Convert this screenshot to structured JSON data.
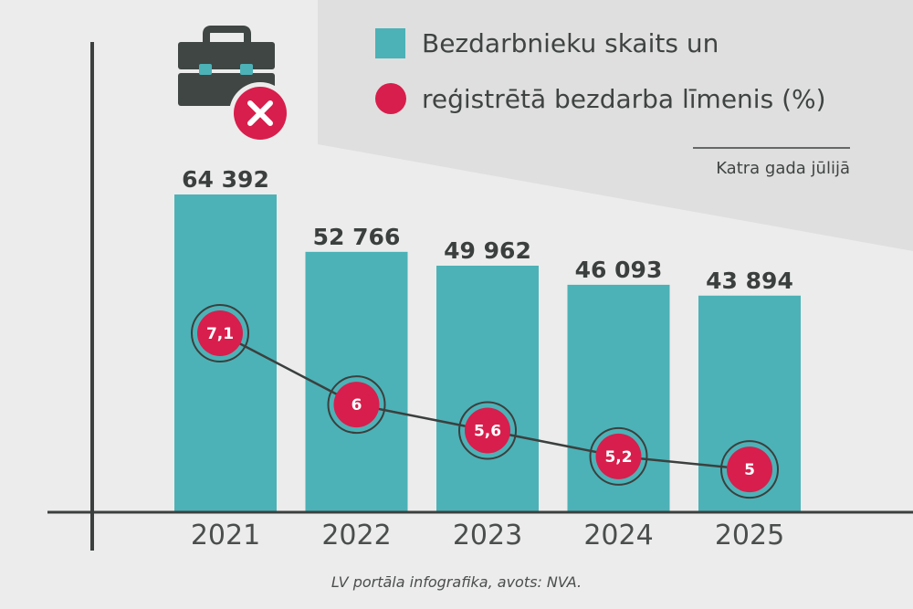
{
  "colors": {
    "background": "#ececec",
    "panel": "#dfdfdf",
    "bar": "#4cb2b7",
    "rate": "#d81e4c",
    "axis": "#3b403e",
    "icon": "#3f4643"
  },
  "icons": {
    "header": "briefcase-with-x-icon"
  },
  "legend": {
    "position": "top-right",
    "bars_label": "Bezdarbnieku skaits un",
    "line_label": "reģistrētā bezdarba līmenis (%)"
  },
  "note": "Katra gada jūlijā",
  "source": "LV portāla infografika, avots: NVA.",
  "chart_data": {
    "type": "bar",
    "categories": [
      "2021",
      "2022",
      "2023",
      "2024",
      "2025"
    ],
    "series": [
      {
        "name": "Bezdarbnieku skaits",
        "type": "bar",
        "values": [
          64392,
          52766,
          49962,
          46093,
          43894
        ],
        "labels": [
          "64 392",
          "52 766",
          "49 962",
          "46 093",
          "43 894"
        ]
      },
      {
        "name": "reģistrētā bezdarba līmenis (%)",
        "type": "line",
        "values": [
          7.1,
          6,
          5.6,
          5.2,
          5
        ],
        "labels": [
          "7,1",
          "6",
          "5,6",
          "5,2",
          "5"
        ]
      }
    ],
    "ylim": [
      0,
      70000
    ],
    "grid": false
  }
}
